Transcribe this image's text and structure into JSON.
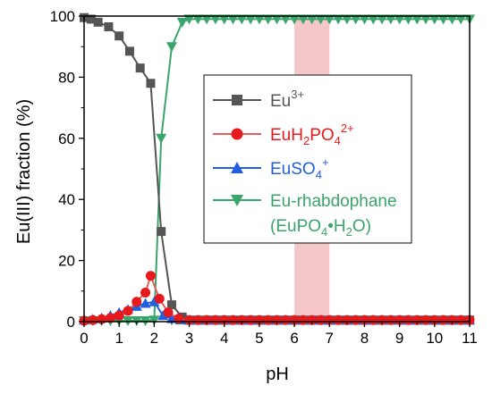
{
  "chart_data": {
    "type": "line",
    "xlabel": "pH",
    "ylabel": "Eu(III) fraction (%)",
    "xlim": [
      0,
      11
    ],
    "ylim": [
      0,
      100
    ],
    "xticks": [
      "0",
      "1",
      "2",
      "3",
      "4",
      "5",
      "6",
      "7",
      "8",
      "9",
      "10",
      "11"
    ],
    "yticks": [
      "0",
      "20",
      "40",
      "60",
      "80",
      "100"
    ],
    "grid": false,
    "legend_position": "center-right",
    "shaded_region": {
      "x_from": 6,
      "x_to": 7,
      "color": "#f4c6c8"
    },
    "series": [
      {
        "name": "Eu3+",
        "name_parts": {
          "base": "Eu",
          "sup": "3+"
        },
        "color": "#555555",
        "marker": "square",
        "x": [
          0.0,
          0.2,
          0.4,
          0.7,
          1.0,
          1.3,
          1.6,
          1.9,
          2.2,
          2.5,
          2.8,
          3.0,
          3.25,
          3.5,
          3.75,
          4.0,
          4.25,
          4.5,
          4.75,
          5.0,
          5.25,
          5.5,
          5.75,
          6.0,
          6.25,
          6.5,
          6.75,
          7.0,
          7.25,
          7.5,
          7.75,
          8.0,
          8.25,
          8.5,
          8.75,
          9.0,
          9.25,
          9.5,
          9.75,
          10.0,
          10.25,
          10.5,
          10.75,
          11.0
        ],
        "y": [
          99.5,
          99,
          98,
          96.5,
          93.5,
          88.5,
          83,
          78,
          29.5,
          5.5,
          1.5,
          0.5,
          0.5,
          0.5,
          0.5,
          0.5,
          0.5,
          0.5,
          0.5,
          0.5,
          0.5,
          0.5,
          0.5,
          0.5,
          0.5,
          0.5,
          0.5,
          0.5,
          0.5,
          0.5,
          0.5,
          0.5,
          0.5,
          0.5,
          0.5,
          0.5,
          0.5,
          0.5,
          0.5,
          0.5,
          0.5,
          0.5,
          0.5,
          0.5
        ]
      },
      {
        "name": "EuH2PO42+",
        "name_parts": {
          "base": "EuH",
          "sub1": "2",
          "mid": "PO",
          "sub2": "4",
          "sup": "2+"
        },
        "color": "#e8191c",
        "line_color": "#e06060",
        "marker": "circle",
        "x": [
          0.0,
          0.25,
          0.5,
          0.75,
          1.0,
          1.25,
          1.5,
          1.75,
          1.9,
          2.15,
          2.4,
          2.7,
          3.0,
          3.25,
          3.5,
          3.75,
          4.0,
          4.25,
          4.5,
          4.75,
          5.0,
          5.25,
          5.5,
          5.75,
          6.0,
          6.25,
          6.5,
          6.75,
          7.0,
          7.25,
          7.5,
          7.75,
          8.0,
          8.25,
          8.5,
          8.75,
          9.0,
          9.25,
          9.5,
          9.75,
          10.0,
          10.25,
          10.5,
          10.75,
          11.0
        ],
        "y": [
          0.3,
          0.5,
          0.8,
          1.2,
          2,
          3.5,
          6.5,
          9.5,
          15,
          7.5,
          3,
          1,
          0.5,
          0.5,
          0.5,
          0.5,
          0.5,
          0.5,
          0.5,
          0.5,
          0.5,
          0.5,
          0.5,
          0.5,
          0.5,
          0.5,
          0.5,
          0.5,
          0.5,
          0.5,
          0.5,
          0.5,
          0.5,
          0.5,
          0.5,
          0.5,
          0.5,
          0.5,
          0.5,
          0.5,
          0.5,
          0.5,
          0.5,
          0.5,
          0.5
        ]
      },
      {
        "name": "EuSO4+",
        "name_parts": {
          "base": "EuSO",
          "sub2": "4",
          "sup": "+"
        },
        "color": "#1f5fe0",
        "line_color": "#1f5fe0",
        "marker": "triangle-up",
        "x": [
          0.0,
          0.25,
          0.5,
          0.75,
          1.0,
          1.25,
          1.5,
          1.75,
          2.0,
          2.25,
          2.5,
          2.75,
          3.0,
          3.25,
          3.5,
          3.75,
          4.0,
          4.25,
          4.5,
          4.75,
          5.0,
          5.25,
          5.5,
          5.75,
          6.0,
          6.25,
          6.5,
          6.75,
          7.0,
          7.25,
          7.5,
          7.75,
          8.0,
          8.25,
          8.5,
          8.75,
          9.0,
          9.25,
          9.5,
          9.75,
          10.0,
          10.25,
          10.5,
          10.75,
          11.0
        ],
        "y": [
          0.5,
          0.8,
          1.2,
          2,
          3,
          4,
          5,
          6,
          6.5,
          2,
          1,
          0.6,
          0.5,
          0.5,
          0.5,
          0.5,
          0.5,
          0.5,
          0.5,
          0.5,
          0.5,
          0.5,
          0.5,
          0.5,
          0.5,
          0.5,
          0.5,
          0.5,
          0.5,
          0.5,
          0.5,
          0.5,
          0.5,
          0.5,
          0.5,
          0.5,
          0.5,
          0.5,
          0.5,
          0.5,
          0.5,
          0.5,
          0.5,
          0.5,
          0.5
        ]
      },
      {
        "name": "Eu-rhabdophane (EuPO4•H2O)",
        "name_parts": {
          "line1": "Eu-rhabdophane",
          "line2a": "(EuPO",
          "line2sub1": "4",
          "line2b": "•H",
          "line2sub2": "2",
          "line2c": "O)"
        },
        "color": "#3aa56a",
        "marker": "triangle-down",
        "x": [
          0.0,
          0.25,
          0.5,
          0.75,
          1.0,
          1.25,
          1.5,
          1.75,
          2.0,
          2.2,
          2.5,
          2.8,
          3.0,
          3.25,
          3.5,
          3.75,
          4.0,
          4.25,
          4.5,
          4.75,
          5.0,
          5.25,
          5.5,
          5.75,
          6.0,
          6.25,
          6.5,
          6.75,
          7.0,
          7.25,
          7.5,
          7.75,
          8.0,
          8.25,
          8.5,
          8.75,
          9.0,
          9.25,
          9.5,
          9.75,
          10.0,
          10.25,
          10.5,
          10.75,
          11.0
        ],
        "y": [
          0.3,
          0.3,
          0.3,
          0.3,
          0.3,
          0.3,
          0.3,
          0.3,
          0.5,
          60,
          90,
          98,
          99,
          99,
          99,
          99,
          99,
          99,
          99,
          99,
          99,
          99,
          99,
          99,
          99,
          99,
          99,
          99,
          99,
          99,
          99,
          99,
          99,
          99,
          99,
          99,
          99,
          99,
          99,
          99,
          99,
          99,
          99,
          99,
          99
        ]
      }
    ]
  }
}
